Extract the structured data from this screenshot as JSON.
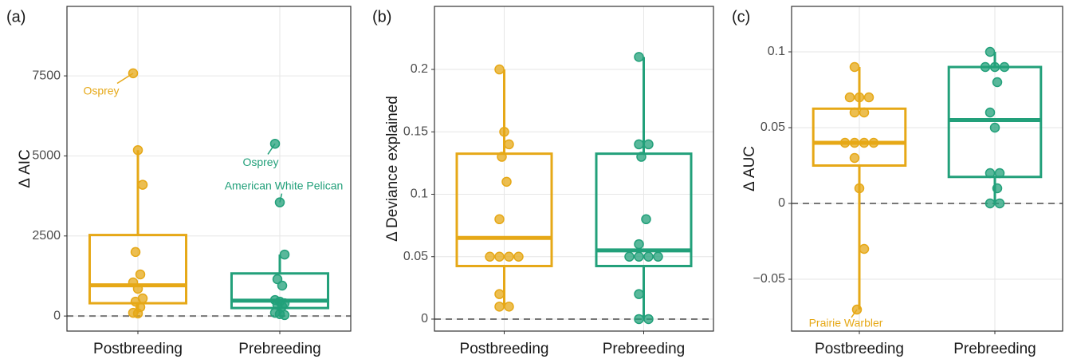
{
  "chart_data": [
    {
      "type": "box",
      "panel": "(a)",
      "ylabel": "Δ AIC",
      "categories": [
        "Postbreeding",
        "Prebreeding"
      ],
      "ylim": [
        -470,
        9670
      ],
      "yticks": [
        0,
        2500,
        5000,
        7500
      ],
      "hline": 0,
      "grid": true,
      "series": [
        {
          "name": "Postbreeding",
          "color": "#e6a817",
          "box": {
            "whisker_low": 80,
            "q1": 400,
            "median": 960,
            "q3": 2530,
            "whisker_high": 5180
          },
          "points": [
            7580,
            5180,
            4100,
            2000,
            1300,
            1050,
            850,
            550,
            450,
            280,
            100,
            80
          ],
          "point_labels": [
            "Osprey",
            null,
            null,
            null,
            null,
            null,
            null,
            null,
            null,
            null,
            null,
            null
          ]
        },
        {
          "name": "Prebreeding",
          "color": "#22a07a",
          "box": {
            "whisker_low": 30,
            "q1": 250,
            "median": 480,
            "q3": 1330,
            "whisker_high": 1920
          },
          "points": [
            5380,
            3550,
            1920,
            1150,
            950,
            500,
            450,
            400,
            350,
            300,
            100,
            60,
            30
          ],
          "point_labels": [
            "Osprey",
            "American White Pelican",
            null,
            null,
            null,
            null,
            null,
            null,
            null,
            null,
            null,
            null,
            null
          ]
        }
      ]
    },
    {
      "type": "box",
      "panel": "(b)",
      "ylabel": "Δ Deviance explained",
      "categories": [
        "Postbreeding",
        "Prebreeding"
      ],
      "ylim": [
        -0.0096,
        0.2505
      ],
      "yticks": [
        0,
        0.05,
        0.1,
        0.15,
        0.2
      ],
      "hline": 0,
      "grid": true,
      "series": [
        {
          "name": "Postbreeding",
          "color": "#e6a817",
          "box": {
            "whisker_low": 0.01,
            "q1": 0.0425,
            "median": 0.065,
            "q3": 0.1325,
            "whisker_high": 0.2
          },
          "points": [
            0.2,
            0.15,
            0.14,
            0.13,
            0.11,
            0.08,
            0.05,
            0.05,
            0.05,
            0.05,
            0.02,
            0.01,
            0.01
          ],
          "point_labels": [
            null,
            null,
            null,
            null,
            null,
            null,
            null,
            null,
            null,
            null,
            null,
            null,
            null
          ]
        },
        {
          "name": "Prebreeding",
          "color": "#22a07a",
          "box": {
            "whisker_low": 0,
            "q1": 0.0425,
            "median": 0.055,
            "q3": 0.1325,
            "whisker_high": 0.21
          },
          "points": [
            0.21,
            0.14,
            0.14,
            0.13,
            0.08,
            0.06,
            0.05,
            0.05,
            0.05,
            0.05,
            0.02,
            0,
            0
          ],
          "point_labels": [
            null,
            null,
            null,
            null,
            null,
            null,
            null,
            null,
            null,
            null,
            null,
            null,
            null
          ]
        }
      ]
    },
    {
      "type": "box",
      "panel": "(c)",
      "ylabel": "Δ AUC",
      "categories": [
        "Postbreeding",
        "Prebreeding"
      ],
      "ylim": [
        -0.0842,
        0.13
      ],
      "yticks": [
        {
          "value": -0.05,
          "label": "−0.05"
        },
        0,
        0.05,
        0.1
      ],
      "hline": 0,
      "grid": true,
      "series": [
        {
          "name": "Postbreeding",
          "color": "#e6a817",
          "box": {
            "whisker_low": -0.07,
            "q1": 0.025,
            "median": 0.04,
            "q3": 0.0625,
            "whisker_high": 0.09
          },
          "points": [
            0.09,
            0.07,
            0.07,
            0.07,
            0.06,
            0.06,
            0.04,
            0.04,
            0.04,
            0.04,
            0.03,
            0.01,
            -0.03,
            -0.07
          ],
          "point_labels": [
            null,
            null,
            null,
            null,
            null,
            null,
            null,
            null,
            null,
            null,
            null,
            null,
            null,
            "Prairie Warbler"
          ]
        },
        {
          "name": "Prebreeding",
          "color": "#22a07a",
          "box": {
            "whisker_low": 0,
            "q1": 0.0175,
            "median": 0.055,
            "q3": 0.09,
            "whisker_high": 0.1
          },
          "points": [
            0.1,
            0.09,
            0.09,
            0.09,
            0.08,
            0.06,
            0.05,
            0.02,
            0.02,
            0.01,
            0,
            0
          ],
          "point_labels": [
            null,
            null,
            null,
            null,
            null,
            null,
            null,
            null,
            null,
            null,
            null,
            null
          ]
        }
      ]
    }
  ]
}
